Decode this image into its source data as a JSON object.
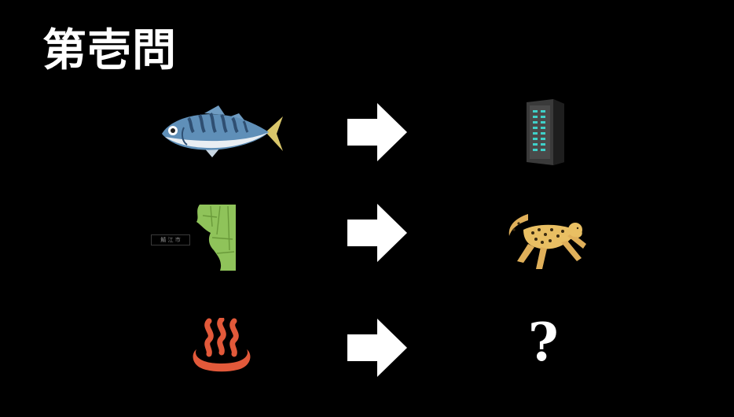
{
  "slide": {
    "title": "第壱問",
    "question_mark": "?",
    "rows": [
      {
        "left_icon": "mackerel-fish-icon",
        "right_icon": "server-rack-icon"
      },
      {
        "left_icon": "map-fragment-icon",
        "right_icon": "cheetah-icon"
      },
      {
        "left_icon": "hot-spring-onsen-icon",
        "right_icon": "question-mark"
      }
    ],
    "map_label": "鯖 江 市"
  },
  "colors": {
    "background": "#000000",
    "text": "#ffffff",
    "fish_body": "#5f8fb8",
    "fish_belly": "#e9eef3",
    "fish_tail": "#d9c66a",
    "map_green": "#8fc35a",
    "onsen": "#e2593a"
  }
}
